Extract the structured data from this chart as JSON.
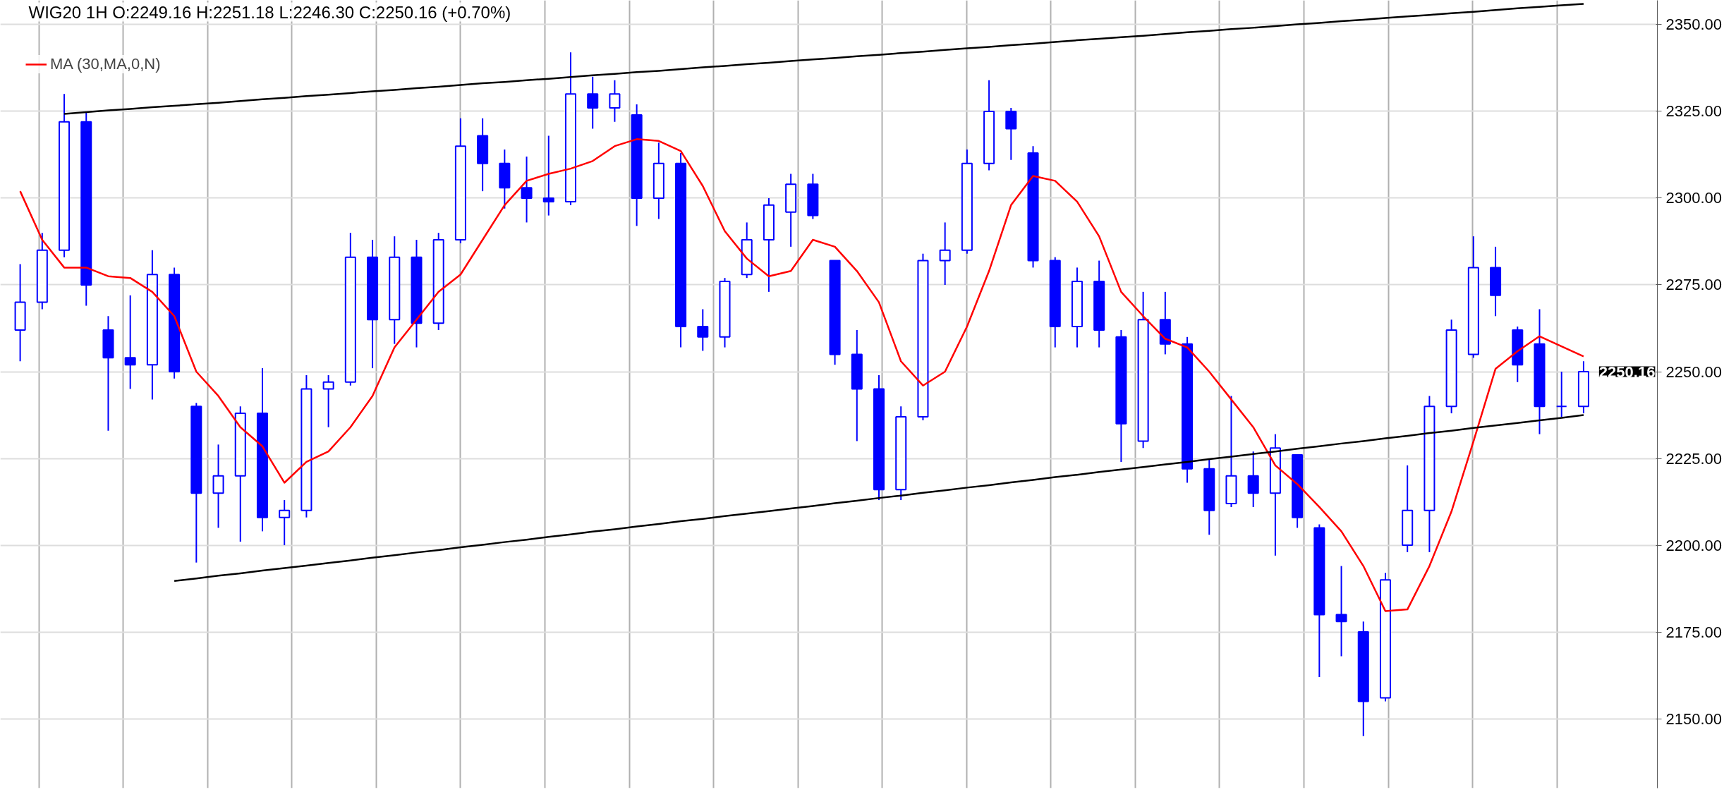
{
  "chart_data": {
    "type": "candlestick",
    "title": "WIG20  1H  O:2249.16  H:2251.18  L:2246.30  C:2250.16  (+0.70%)",
    "categories": [
      null,
      null,
      null,
      null,
      null,
      null,
      null,
      null,
      null,
      null,
      null,
      null,
      null,
      null,
      null,
      null,
      null,
      null,
      null,
      null,
      null,
      null,
      null,
      null,
      null,
      null,
      null,
      null,
      null,
      null,
      null,
      null,
      null,
      null,
      null,
      null,
      null,
      null,
      null,
      null,
      null,
      null,
      null,
      null,
      null,
      null,
      null,
      null,
      null,
      null,
      null,
      null,
      null,
      null,
      null,
      null,
      null,
      null,
      null,
      null,
      null,
      null,
      null,
      null,
      null,
      null,
      null,
      null,
      null,
      null,
      null,
      null
    ],
    "ylim": [
      2130,
      2357
    ],
    "yticks": [
      {
        "value": 2150,
        "label": "2150.00"
      },
      {
        "value": 2175,
        "label": "2175.00"
      },
      {
        "value": 2200,
        "label": "2200.00"
      },
      {
        "value": 2225,
        "label": "2225.00"
      },
      {
        "value": 2250,
        "label": "2250.00"
      },
      {
        "value": 2275,
        "label": "2275.00"
      },
      {
        "value": 2300,
        "label": "2300.00"
      },
      {
        "value": 2325,
        "label": "2325.00"
      },
      {
        "value": 2350,
        "label": "2350.00"
      }
    ],
    "tick_labels": "y",
    "grid": true,
    "legend": "top left",
    "annotations": [
      "2250.16"
    ],
    "ohlc": [
      [
        2262,
        2281,
        2253,
        2270
      ],
      [
        2270,
        2290,
        2268,
        2285
      ],
      [
        2285,
        2330,
        2283,
        2322
      ],
      [
        2322,
        2325,
        2269,
        2275
      ],
      [
        2262,
        2266,
        2233,
        2254
      ],
      [
        2254,
        2272,
        2245,
        2252
      ],
      [
        2252,
        2285,
        2242,
        2278
      ],
      [
        2278,
        2280,
        2248,
        2250
      ],
      [
        2240,
        2241,
        2195,
        2215
      ],
      [
        2215,
        2229,
        2205,
        2220
      ],
      [
        2220,
        2240,
        2201,
        2238
      ],
      [
        2238,
        2251,
        2204,
        2208
      ],
      [
        2208,
        2213,
        2200,
        2210
      ],
      [
        2210,
        2249,
        2208,
        2245
      ],
      [
        2245,
        2249,
        2234,
        2247
      ],
      [
        2247,
        2290,
        2246,
        2283
      ],
      [
        2283,
        2288,
        2251,
        2265
      ],
      [
        2265,
        2289,
        2258,
        2283
      ],
      [
        2283,
        2288,
        2257,
        2264
      ],
      [
        2264,
        2290,
        2262,
        2288
      ],
      [
        2288,
        2323,
        2287,
        2315
      ],
      [
        2318,
        2323,
        2302,
        2310
      ],
      [
        2310,
        2314,
        2297,
        2303
      ],
      [
        2303,
        2312,
        2293,
        2300
      ],
      [
        2300,
        2318,
        2295,
        2299
      ],
      [
        2299,
        2342,
        2298,
        2330
      ],
      [
        2330,
        2335,
        2320,
        2326
      ],
      [
        2326,
        2334,
        2322,
        2330
      ],
      [
        2324,
        2327,
        2292,
        2300
      ],
      [
        2300,
        2316,
        2294,
        2310
      ],
      [
        2310,
        2313,
        2257,
        2263
      ],
      [
        2263,
        2268,
        2256,
        2260
      ],
      [
        2260,
        2277,
        2257,
        2276
      ],
      [
        2278,
        2293,
        2277,
        2288
      ],
      [
        2288,
        2300,
        2273,
        2298
      ],
      [
        2296,
        2307,
        2286,
        2304
      ],
      [
        2304,
        2307,
        2294,
        2295
      ],
      [
        2282,
        2282,
        2252,
        2255
      ],
      [
        2255,
        2262,
        2230,
        2245
      ],
      [
        2245,
        2249,
        2213,
        2216
      ],
      [
        2216,
        2240,
        2213,
        2237
      ],
      [
        2237,
        2284,
        2236,
        2282
      ],
      [
        2282,
        2293,
        2275,
        2285
      ],
      [
        2285,
        2314,
        2284,
        2310
      ],
      [
        2310,
        2334,
        2308,
        2325
      ],
      [
        2325,
        2326,
        2311,
        2320
      ],
      [
        2313,
        2315,
        2280,
        2282
      ],
      [
        2282,
        2283,
        2257,
        2263
      ],
      [
        2263,
        2280,
        2257,
        2276
      ],
      [
        2276,
        2282,
        2257,
        2262
      ],
      [
        2260,
        2262,
        2224,
        2235
      ],
      [
        2230,
        2273,
        2228,
        2265
      ],
      [
        2265,
        2273,
        2255,
        2258
      ],
      [
        2258,
        2260,
        2218,
        2222
      ],
      [
        2222,
        2225,
        2203,
        2210
      ],
      [
        2212,
        2243,
        2211,
        2220
      ],
      [
        2220,
        2227,
        2211,
        2215
      ],
      [
        2215,
        2232,
        2197,
        2228
      ],
      [
        2226,
        2226,
        2205,
        2208
      ],
      [
        2205,
        2206,
        2162,
        2180
      ],
      [
        2180,
        2194,
        2168,
        2178
      ],
      [
        2175,
        2178,
        2145,
        2155
      ],
      [
        2156,
        2192,
        2155,
        2190
      ],
      [
        2200,
        2223,
        2198,
        2210
      ],
      [
        2210,
        2243,
        2198,
        2240
      ],
      [
        2240,
        2265,
        2238,
        2262
      ],
      [
        2255,
        2289,
        2254,
        2280
      ],
      [
        2280,
        2286,
        2266,
        2272
      ],
      [
        2262,
        2263,
        2247,
        2252
      ],
      [
        2258,
        2268,
        2232,
        2240
      ],
      [
        2240,
        2250,
        2237,
        2240
      ],
      [
        2240,
        2253,
        2238,
        2250
      ]
    ],
    "color": "#0000ff",
    "series": [
      {
        "type": "line",
        "name": "MA (30,MA,0,N)",
        "color": "#ff0000",
        "values": [
          2302,
          2288,
          2280,
          2280,
          2277.5,
          2277,
          2273,
          2266,
          2250,
          2243,
          2234,
          2228.5,
          2218,
          2224,
          2227,
          2234,
          2243,
          2257,
          2265,
          2273,
          2278,
          2288,
          2298,
          2305,
          2307,
          2308.5,
          2310.7,
          2315,
          2317,
          2316.5,
          2313.6,
          2303.5,
          2290.5,
          2282.6,
          2277.5,
          2279,
          2288,
          2286,
          2279,
          2270,
          2253,
          2246,
          2250,
          2263,
          2279,
          2298,
          2306.4,
          2305,
          2299,
          2289,
          2273,
          2266,
          2259.5,
          2257,
          2250,
          2242,
          2234,
          2223,
          2217.6,
          2211,
          2204,
          2194,
          2181,
          2181.5,
          2194,
          2209.7,
          2229.9,
          2250.8,
          2255.9,
          2260.2,
          2257.3,
          2254.4
        ]
      },
      {
        "type": "line",
        "color": "#000000",
        "values": [
          null,
          null,
          2324.3,
          2324.8,
          2325.3,
          2325.7,
          2326.2,
          2326.6,
          2327.1,
          2327.5,
          2328.0,
          2328.5,
          2328.9,
          2329.4,
          2329.8,
          2330.3,
          2330.8,
          2331.2,
          2331.7,
          2332.1,
          2332.6,
          2333.1,
          2333.5,
          2334.0,
          2334.4,
          2334.9,
          2335.4,
          2335.8,
          2336.3,
          2336.7,
          2337.2,
          2337.7,
          2338.1,
          2338.6,
          2339.0,
          2339.5,
          2340.0,
          2340.4,
          2340.9,
          2341.3,
          2341.8,
          2342.2,
          2342.7,
          2343.2,
          2343.6,
          2344.1,
          2344.5,
          2345.0,
          2345.5,
          2345.9,
          2346.4,
          2346.8,
          2347.3,
          2347.8,
          2348.2,
          2348.7,
          2349.1,
          2349.6,
          2350.1,
          2350.5,
          2351.0,
          2351.4,
          2351.9,
          2352.4,
          2352.8,
          2353.3,
          2353.7,
          2354.2,
          2354.7,
          2355.1,
          2355.6,
          2356.0
        ]
      },
      {
        "type": "line",
        "color": "#000000",
        "values": [
          null,
          null,
          null,
          null,
          null,
          null,
          null,
          2189.7,
          2190.4,
          2191.2,
          2191.9,
          2192.7,
          2193.4,
          2194.1,
          2194.9,
          2195.6,
          2196.4,
          2197.1,
          2197.9,
          2198.6,
          2199.4,
          2200.1,
          2200.9,
          2201.6,
          2202.4,
          2203.1,
          2203.9,
          2204.6,
          2205.4,
          2206.1,
          2206.9,
          2207.6,
          2208.4,
          2209.1,
          2209.8,
          2210.6,
          2211.3,
          2212.1,
          2212.8,
          2213.6,
          2214.3,
          2215.1,
          2215.8,
          2216.6,
          2217.3,
          2218.1,
          2218.8,
          2219.6,
          2220.3,
          2221.1,
          2221.8,
          2222.5,
          2223.3,
          2224.0,
          2224.8,
          2225.5,
          2226.3,
          2227.0,
          2227.8,
          2228.5,
          2229.3,
          2230.0,
          2230.8,
          2231.5,
          2232.3,
          2233.0,
          2233.8,
          2234.5,
          2235.2,
          2236.0,
          2236.7,
          2237.5
        ]
      }
    ]
  }
}
